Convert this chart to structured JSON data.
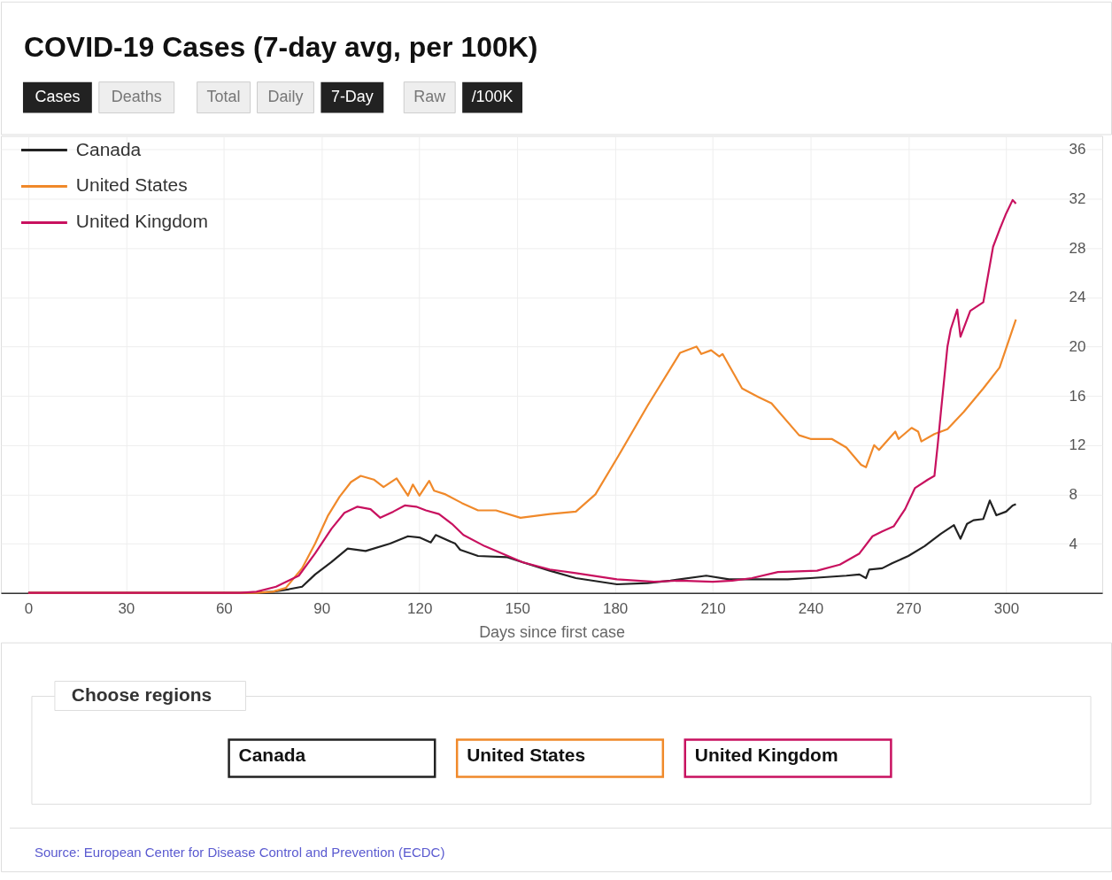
{
  "chart_data": {
    "type": "line",
    "title": "COVID-19 Cases (7-day avg, per 100K)",
    "xlabel": "Days since first case",
    "xlim": [
      -8.4,
      329.5
    ],
    "xticks": [
      0,
      30,
      60,
      90,
      120,
      150,
      180,
      210,
      240,
      270,
      300
    ],
    "ylim": [
      0,
      37.1
    ],
    "yticks": [
      4,
      8,
      12,
      16,
      20,
      24,
      28,
      32,
      36
    ],
    "grid": true,
    "legend": "top left",
    "marker": "none",
    "line_style": "solid",
    "series": [
      {
        "name": "Canada",
        "color": "#222222",
        "x": [
          0,
          70,
          75,
          80,
          84,
          88,
          93,
          98,
          103.5,
          111,
          116.5,
          120,
          123.5,
          125,
          131,
          132.5,
          138,
          147,
          151.6,
          160,
          168,
          180.6,
          190,
          197,
          208,
          215,
          233,
          240,
          251,
          255,
          257,
          258,
          262,
          265,
          270,
          275,
          280,
          284,
          286,
          288,
          290,
          293,
          295,
          297,
          300,
          302,
          303
        ],
        "values": [
          0,
          0,
          0.1,
          0.3,
          0.5,
          1.5,
          2.5,
          3.6,
          3.4,
          4.0,
          4.6,
          4.5,
          4.1,
          4.7,
          4.0,
          3.5,
          3.0,
          2.9,
          2.5,
          1.8,
          1.2,
          0.7,
          0.8,
          1.0,
          1.4,
          1.1,
          1.1,
          1.2,
          1.4,
          1.5,
          1.2,
          1.9,
          2.0,
          2.4,
          3.0,
          3.8,
          4.8,
          5.5,
          4.4,
          5.6,
          5.9,
          6.0,
          7.5,
          6.3,
          6.6,
          7.1,
          7.2
        ]
      },
      {
        "name": "United States",
        "color": "#f0892a",
        "x": [
          0,
          70,
          75,
          79,
          84,
          88,
          92,
          95.5,
          99,
          102,
          106,
          109,
          113,
          116.5,
          118,
          120,
          123,
          124.5,
          128,
          133,
          138,
          143.5,
          151,
          160,
          168,
          174,
          181,
          190,
          200,
          205,
          206.5,
          209.5,
          212,
          213,
          219,
          224,
          228,
          236.5,
          240,
          246.5,
          251,
          255.5,
          257,
          259.5,
          261,
          266,
          267,
          271,
          273,
          274,
          278,
          282,
          287,
          293,
          298,
          303
        ],
        "values": [
          0,
          0,
          0.1,
          0.4,
          2.0,
          4.0,
          6.3,
          7.8,
          9.0,
          9.5,
          9.2,
          8.6,
          9.3,
          7.9,
          8.8,
          7.9,
          9.1,
          8.3,
          8.0,
          7.3,
          6.7,
          6.7,
          6.1,
          6.4,
          6.6,
          8.0,
          11.1,
          15.2,
          19.5,
          20.0,
          19.4,
          19.7,
          19.2,
          19.4,
          16.6,
          15.9,
          15.4,
          12.8,
          12.5,
          12.5,
          11.8,
          10.4,
          10.2,
          12.0,
          11.6,
          13.1,
          12.5,
          13.4,
          13.1,
          12.3,
          12.9,
          13.3,
          14.7,
          16.6,
          18.3,
          22.2
        ]
      },
      {
        "name": "United Kingdom",
        "color": "#c8115f",
        "x": [
          0,
          65,
          70,
          76,
          83,
          88,
          93,
          97,
          101,
          105,
          108,
          112,
          115.5,
          119,
          122,
          126,
          130,
          133.5,
          140,
          151.6,
          160,
          168,
          180.6,
          192,
          200,
          210,
          216,
          222,
          230,
          242,
          249,
          255,
          259,
          262,
          265.5,
          269,
          272,
          276,
          278,
          279,
          280,
          282,
          283,
          285,
          286,
          289,
          293,
          296,
          298,
          300,
          302,
          303
        ],
        "values": [
          0,
          0,
          0.1,
          0.5,
          1.4,
          3.2,
          5.2,
          6.5,
          7.0,
          6.8,
          6.1,
          6.6,
          7.1,
          7.0,
          6.7,
          6.4,
          5.6,
          4.7,
          3.8,
          2.5,
          1.9,
          1.6,
          1.1,
          0.9,
          1.0,
          0.9,
          1.0,
          1.2,
          1.7,
          1.8,
          2.3,
          3.2,
          4.6,
          5.0,
          5.4,
          6.8,
          8.5,
          9.2,
          9.5,
          12,
          14.7,
          20,
          21.4,
          23.0,
          20.8,
          22.9,
          23.6,
          28.1,
          29.5,
          30.8,
          31.9,
          31.6
        ]
      }
    ],
    "annotations": [
      "Cases",
      "Deaths",
      "Total",
      "Daily",
      "7-Day",
      "Raw",
      "/100K",
      "Choose regions",
      "Source: European Center for Disease Control and Prevention (ECDC)"
    ]
  }
}
